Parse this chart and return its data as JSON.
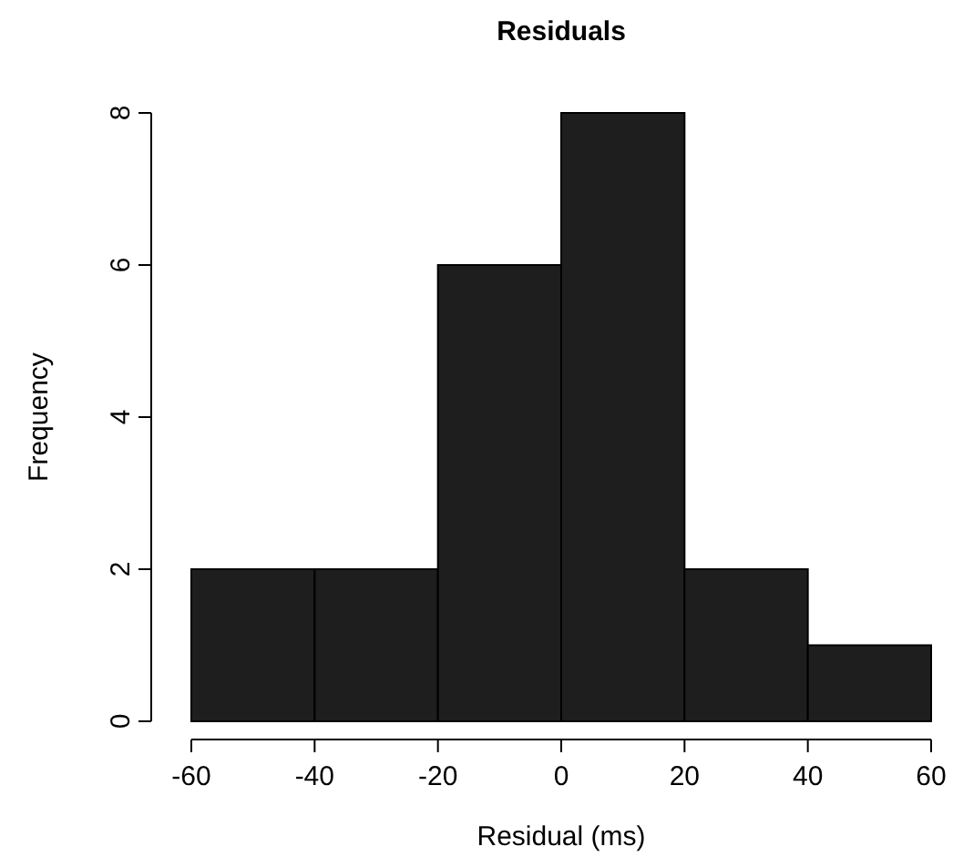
{
  "chart_data": {
    "type": "histogram",
    "title": "Residuals",
    "xlabel": "Residual (ms)",
    "ylabel": "Frequency",
    "bins": [
      -60,
      -40,
      -20,
      0,
      20,
      40,
      60
    ],
    "values": [
      2,
      2,
      6,
      8,
      2,
      1
    ],
    "color": "#1e1e1e",
    "xlim": [
      -60,
      60
    ],
    "ylim": [
      0,
      8
    ],
    "xticks": [
      -60,
      -40,
      -20,
      0,
      20,
      40,
      60
    ],
    "yticks": [
      0,
      2,
      4,
      6,
      8
    ]
  }
}
